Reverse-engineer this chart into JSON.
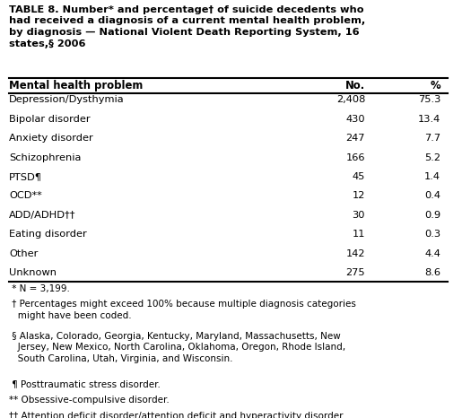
{
  "title_lines": [
    "TABLE 8. Number* and percentage† of suicide decedents who",
    "had received a diagnosis of a current mental health problem,",
    "by diagnosis — National Violent Death Reporting System, 16",
    "states,§ 2006"
  ],
  "col_headers": [
    "Mental health problem",
    "No.",
    "%"
  ],
  "rows": [
    [
      "Depression/Dysthymia",
      "2,408",
      "75.3"
    ],
    [
      "Bipolar disorder",
      "430",
      "13.4"
    ],
    [
      "Anxiety disorder",
      "247",
      "7.7"
    ],
    [
      "Schizophrenia",
      "166",
      "5.2"
    ],
    [
      "PTSD¶",
      "45",
      "1.4"
    ],
    [
      "OCD**",
      "12",
      "0.4"
    ],
    [
      "ADD/ADHD††",
      "30",
      "0.9"
    ],
    [
      "Eating disorder",
      "11",
      "0.3"
    ],
    [
      "Other",
      "142",
      "4.4"
    ],
    [
      "Unknown",
      "275",
      "8.6"
    ]
  ],
  "footnotes": [
    " * N = 3,199.",
    " † Percentages might exceed 100% because multiple diagnosis categories\n   might have been coded.",
    " § Alaska, Colorado, Georgia, Kentucky, Maryland, Massachusetts, New\n   Jersey, New Mexico, North Carolina, Oklahoma, Oregon, Rhode Island,\n   South Carolina, Utah, Virginia, and Wisconsin.",
    " ¶ Posttraumatic stress disorder.",
    "** Obsessive-compulsive disorder.",
    "†† Attention deficit disorder/attention deficit and hyperactivity disorder."
  ],
  "bg_color": "#ffffff",
  "text_color": "#000000",
  "font_size_title": 8.2,
  "font_size_header": 8.4,
  "font_size_body": 8.2,
  "font_size_footnote": 7.5
}
